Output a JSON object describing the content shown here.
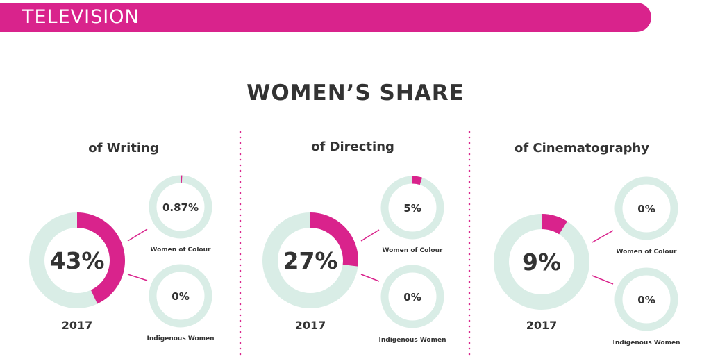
{
  "banner": {
    "label": "TELEVISION"
  },
  "title": "WOMEN’S SHARE",
  "colors": {
    "accent": "#d9238c",
    "track": "#d9ede6",
    "text": "#333333"
  },
  "chart_data": [
    {
      "type": "pie",
      "title": "of Writing",
      "year": "2017",
      "main": {
        "label": "43%",
        "value": 43
      },
      "breakdowns": [
        {
          "label": "0.87%",
          "value": 0.87,
          "name": "Women of Colour"
        },
        {
          "label": "0%",
          "value": 0,
          "name": "Indigenous Women"
        }
      ]
    },
    {
      "type": "pie",
      "title": "of Directing",
      "year": "2017",
      "main": {
        "label": "27%",
        "value": 27
      },
      "breakdowns": [
        {
          "label": "5%",
          "value": 5,
          "name": "Women of Colour"
        },
        {
          "label": "0%",
          "value": 0,
          "name": "Indigenous Women"
        }
      ]
    },
    {
      "type": "pie",
      "title": "of Cinematography",
      "year": "2017",
      "main": {
        "label": "9%",
        "value": 9
      },
      "breakdowns": [
        {
          "label": "0%",
          "value": 0,
          "name": "Women of Colour"
        },
        {
          "label": "0%",
          "value": 0,
          "name": "Indigenous Women"
        }
      ]
    }
  ]
}
